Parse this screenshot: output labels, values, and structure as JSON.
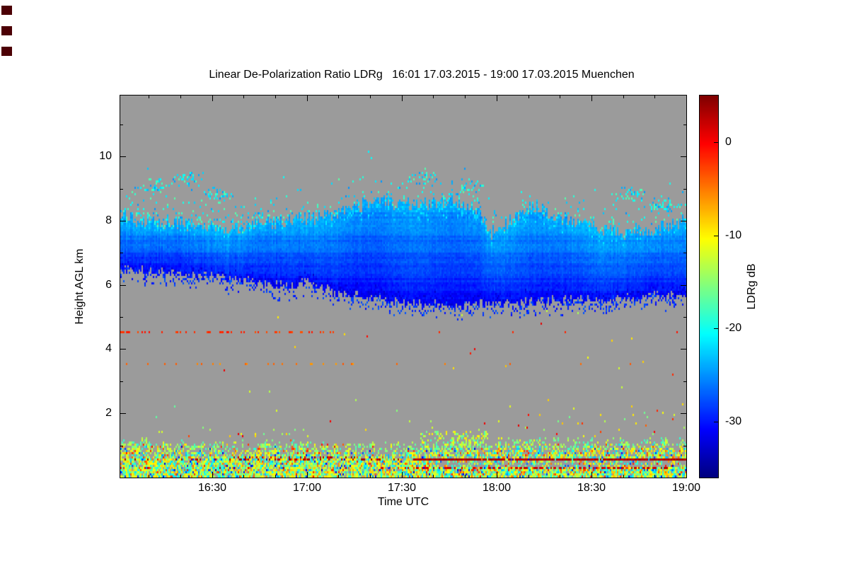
{
  "chart_data": {
    "type": "heatmap",
    "title": "Linear De-Polarization Ratio LDRg   16:01 17.03.2015 - 19:00 17.03.2015 Muenchen",
    "x_axis": {
      "label": "Time UTC",
      "range_minutes": [
        961,
        1140
      ],
      "ticks": [
        {
          "minute": 990,
          "label": "16:30"
        },
        {
          "minute": 1020,
          "label": "17:00"
        },
        {
          "minute": 1050,
          "label": "17:30"
        },
        {
          "minute": 1080,
          "label": "18:00"
        },
        {
          "minute": 1110,
          "label": "18:30"
        },
        {
          "minute": 1140,
          "label": "19:00"
        }
      ]
    },
    "y_axis": {
      "label": "Height AGL km",
      "range_km": [
        0,
        11.9
      ],
      "ticks": [
        {
          "km": 2,
          "label": "2"
        },
        {
          "km": 4,
          "label": "4"
        },
        {
          "km": 6,
          "label": "6"
        },
        {
          "km": 8,
          "label": "8"
        },
        {
          "km": 10,
          "label": "10"
        }
      ]
    },
    "colorbar": {
      "label": "LDRg dB",
      "vmin": -36,
      "vmax": 5,
      "colormap": "jet",
      "ticks": [
        {
          "value": 0,
          "label": "0"
        },
        {
          "value": -10,
          "label": "-10"
        },
        {
          "value": -20,
          "label": "-20"
        },
        {
          "value": -30,
          "label": "-30"
        }
      ]
    },
    "background_color": "#9b9b9b",
    "render_seed": 20150317,
    "features": {
      "cloud_layer": {
        "ldr_base_db": -31,
        "ldr_top_db": -24,
        "top_km": [
          [
            0,
            8.1
          ],
          [
            0.05,
            7.95
          ],
          [
            0.1,
            7.9
          ],
          [
            0.15,
            7.78
          ],
          [
            0.2,
            7.72
          ],
          [
            0.25,
            7.9
          ],
          [
            0.3,
            8.0
          ],
          [
            0.35,
            8.12
          ],
          [
            0.4,
            8.35
          ],
          [
            0.45,
            8.6
          ],
          [
            0.5,
            8.5
          ],
          [
            0.55,
            8.55
          ],
          [
            0.6,
            8.6
          ],
          [
            0.63,
            8.25
          ],
          [
            0.66,
            7.62
          ],
          [
            0.7,
            8.1
          ],
          [
            0.73,
            8.45
          ],
          [
            0.78,
            8.1
          ],
          [
            0.82,
            7.85
          ],
          [
            0.86,
            7.72
          ],
          [
            0.9,
            7.6
          ],
          [
            0.95,
            7.78
          ],
          [
            1,
            8.0
          ]
        ],
        "base_km": [
          [
            0,
            6.5
          ],
          [
            0.08,
            6.42
          ],
          [
            0.15,
            6.3
          ],
          [
            0.2,
            6.18
          ],
          [
            0.25,
            6.05
          ],
          [
            0.3,
            5.95
          ],
          [
            0.33,
            6.08
          ],
          [
            0.36,
            5.85
          ],
          [
            0.4,
            5.7
          ],
          [
            0.45,
            5.6
          ],
          [
            0.5,
            5.45
          ],
          [
            0.55,
            5.4
          ],
          [
            0.6,
            5.35
          ],
          [
            0.65,
            5.4
          ],
          [
            0.7,
            5.45
          ],
          [
            0.75,
            5.5
          ],
          [
            0.8,
            5.55
          ],
          [
            0.85,
            5.55
          ],
          [
            0.9,
            5.6
          ],
          [
            0.95,
            5.65
          ],
          [
            1,
            5.7
          ]
        ]
      },
      "boundary_layer": {
        "top_km": [
          [
            0,
            0.95
          ],
          [
            0.1,
            0.88
          ],
          [
            0.2,
            0.82
          ],
          [
            0.3,
            0.9
          ],
          [
            0.4,
            0.78
          ],
          [
            0.5,
            0.82
          ],
          [
            0.6,
            0.88
          ],
          [
            0.7,
            0.95
          ],
          [
            0.8,
            0.9
          ],
          [
            0.9,
            0.95
          ],
          [
            1,
            0.9
          ]
        ]
      },
      "hard_target_lines": [
        {
          "km": 0.55,
          "half_width_km": 0.045,
          "u_start": 0.52,
          "u_end": 1.0,
          "ldr_db": 3,
          "ldr_spread_db": 2,
          "density": 0.92,
          "density_outside": 0.14
        },
        {
          "km": 0.3,
          "half_width_km": 0.04,
          "u_start": 0.5,
          "u_end": 0.97,
          "ldr_db": 1.5,
          "ldr_spread_db": 2,
          "density": 0.45,
          "density_outside": 0.05
        },
        {
          "km": 4.5,
          "half_width_km": 0.034,
          "u_start": 0.0,
          "u_end": 0.38,
          "ldr_db": -2,
          "ldr_spread_db": 3,
          "density": 0.3,
          "density_outside": 0.015
        },
        {
          "km": 3.52,
          "half_width_km": 0.04,
          "u_start": 0.0,
          "u_end": 0.5,
          "ldr_db": -5,
          "ldr_spread_db": 3,
          "density": 0.1,
          "density_outside": 0.012
        }
      ],
      "speckle_clusters": [
        {
          "u": 0.06,
          "km": 9.1
        },
        {
          "u": 0.12,
          "km": 9.3
        },
        {
          "u": 0.17,
          "km": 8.8
        },
        {
          "u": 0.53,
          "km": 9.35
        },
        {
          "u": 0.62,
          "km": 9.0
        },
        {
          "u": 0.9,
          "km": 8.8
        },
        {
          "u": 0.96,
          "km": 8.5
        }
      ]
    }
  }
}
